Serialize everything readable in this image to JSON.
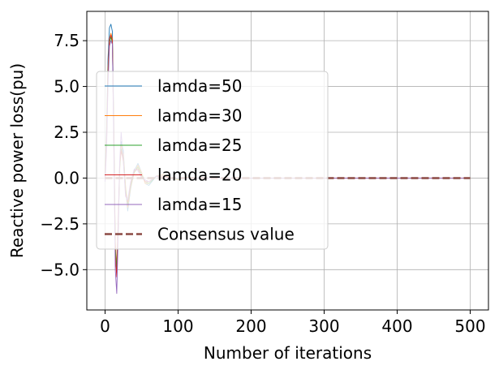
{
  "chart_data": {
    "type": "line",
    "title": "",
    "xlabel": "Number of iterations",
    "ylabel": "Reactive power loss(pu)",
    "xlim": [
      -25,
      525
    ],
    "ylim": [
      -7.2,
      9.1
    ],
    "xticks": [
      0,
      100,
      200,
      300,
      400,
      500
    ],
    "yticks": [
      -5.0,
      -2.5,
      0.0,
      2.5,
      5.0,
      7.5
    ],
    "grid": true,
    "legend_position": "center-left",
    "series": [
      {
        "name": "lamda=50",
        "color": "#1f77b4",
        "style": "thin",
        "x": [
          0,
          2,
          4,
          6,
          8,
          10,
          12,
          14,
          16,
          18,
          20,
          22,
          25,
          28,
          31,
          35,
          40,
          45,
          50,
          55,
          60,
          70,
          80,
          90,
          100,
          110,
          120,
          140,
          160,
          200,
          300,
          500
        ],
        "values": [
          0.3,
          2.5,
          6.5,
          8.2,
          8.4,
          8.0,
          3.0,
          -4.0,
          -5.2,
          -3.0,
          0.5,
          2.0,
          1.5,
          -0.5,
          -1.8,
          -0.6,
          0.4,
          0.8,
          0.3,
          -0.3,
          -0.4,
          0.1,
          0.2,
          0.0,
          -0.1,
          0.05,
          0.0,
          0.0,
          0.0,
          0.0,
          0.0,
          0.0
        ]
      },
      {
        "name": "lamda=30",
        "color": "#ff7f0e",
        "style": "thin",
        "x": [
          0,
          2,
          4,
          6,
          8,
          10,
          12,
          14,
          16,
          18,
          20,
          22,
          25,
          28,
          31,
          35,
          40,
          45,
          50,
          55,
          60,
          70,
          80,
          90,
          100,
          110,
          120,
          140,
          160,
          200,
          300,
          500
        ],
        "values": [
          0.2,
          2.2,
          6.0,
          7.6,
          7.9,
          7.6,
          2.5,
          -3.5,
          -4.8,
          -2.6,
          0.4,
          1.8,
          1.3,
          -0.4,
          -1.6,
          -0.5,
          0.3,
          0.7,
          0.3,
          -0.3,
          -0.3,
          0.1,
          0.2,
          0.0,
          -0.1,
          0.05,
          0.0,
          0.0,
          0.0,
          0.0,
          0.0,
          0.0
        ]
      },
      {
        "name": "lamda=25",
        "color": "#2ca02c",
        "style": "thin",
        "x": [
          0,
          2,
          4,
          6,
          8,
          10,
          12,
          14,
          16,
          18,
          20,
          22,
          25,
          28,
          31,
          35,
          40,
          45,
          50,
          55,
          60,
          70,
          80,
          90,
          100,
          110,
          120,
          140,
          160,
          200,
          300,
          500
        ],
        "values": [
          0.1,
          2.0,
          5.8,
          7.4,
          7.7,
          7.4,
          2.2,
          -3.8,
          -5.0,
          -2.4,
          0.6,
          1.6,
          1.1,
          -0.6,
          -1.4,
          -0.4,
          0.3,
          0.6,
          0.2,
          -0.2,
          -0.3,
          0.1,
          0.1,
          0.0,
          -0.05,
          0.0,
          0.0,
          0.0,
          0.0,
          0.0,
          0.0,
          0.0
        ]
      },
      {
        "name": "lamda=20",
        "color": "#d62728",
        "style": "thin",
        "x": [
          0,
          2,
          4,
          6,
          8,
          10,
          12,
          14,
          16,
          18,
          20,
          22,
          25,
          28,
          31,
          35,
          40,
          45,
          50,
          55,
          60,
          70,
          80,
          90,
          100,
          110,
          120,
          140,
          160,
          200,
          300,
          500
        ],
        "values": [
          0.0,
          1.8,
          5.5,
          7.6,
          7.8,
          7.5,
          2.0,
          -4.2,
          -5.4,
          -2.2,
          0.8,
          1.5,
          0.9,
          -0.8,
          -1.3,
          -0.3,
          0.4,
          0.5,
          0.1,
          -0.2,
          -0.2,
          0.1,
          0.1,
          0.0,
          0.0,
          0.0,
          0.0,
          0.0,
          0.0,
          0.0,
          0.0,
          0.0
        ]
      },
      {
        "name": "lamda=15",
        "color": "#9467bd",
        "style": "thin",
        "x": [
          0,
          2,
          4,
          6,
          8,
          10,
          12,
          14,
          16,
          18,
          20,
          22,
          25,
          28,
          31,
          35,
          40,
          45,
          50,
          55,
          60,
          70,
          80,
          90,
          100,
          110,
          120,
          140,
          160,
          200,
          300,
          500
        ],
        "values": [
          -0.2,
          1.5,
          5.0,
          7.2,
          7.5,
          7.3,
          1.5,
          -5.0,
          -6.3,
          -3.0,
          0.9,
          2.5,
          1.0,
          -1.0,
          -1.2,
          -0.2,
          0.5,
          0.4,
          0.0,
          -0.1,
          -0.2,
          0.1,
          0.0,
          0.0,
          0.0,
          0.0,
          0.0,
          0.0,
          0.0,
          0.0,
          0.0,
          0.0
        ]
      },
      {
        "name": "Consensus value",
        "color": "#8c4a44",
        "style": "dashed",
        "x": [
          0,
          500
        ],
        "values": [
          0.0,
          0.0
        ]
      }
    ]
  }
}
